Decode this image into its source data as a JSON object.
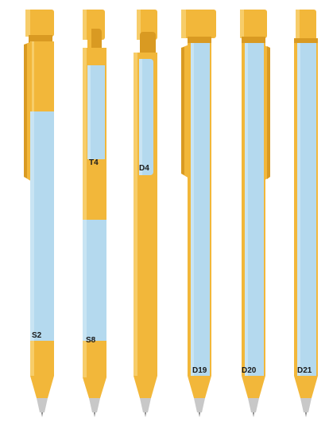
{
  "colors": {
    "body": "#F2B73A",
    "body_shade": "#D99A22",
    "body_light": "#F7CD6A",
    "panel": "#B4D9EE",
    "tip": "#C8C8C8",
    "tip_dark": "#7A7A7A",
    "label": "#1a1a1a"
  },
  "pens": [
    {
      "id": "s2",
      "label": "S2",
      "variant": "wide-clip-low-panel"
    },
    {
      "id": "s8",
      "label": "S8",
      "variant": "split-panel"
    },
    {
      "id": "t4",
      "label": "T4",
      "variant": "split-panel"
    },
    {
      "id": "d4",
      "label": "D4",
      "variant": "short-window"
    },
    {
      "id": "d19",
      "label": "D19",
      "variant": "full-panel-clip"
    },
    {
      "id": "d20",
      "label": "D20",
      "variant": "full-panel-clip"
    },
    {
      "id": "d21",
      "label": "D21",
      "variant": "full-panel"
    }
  ]
}
